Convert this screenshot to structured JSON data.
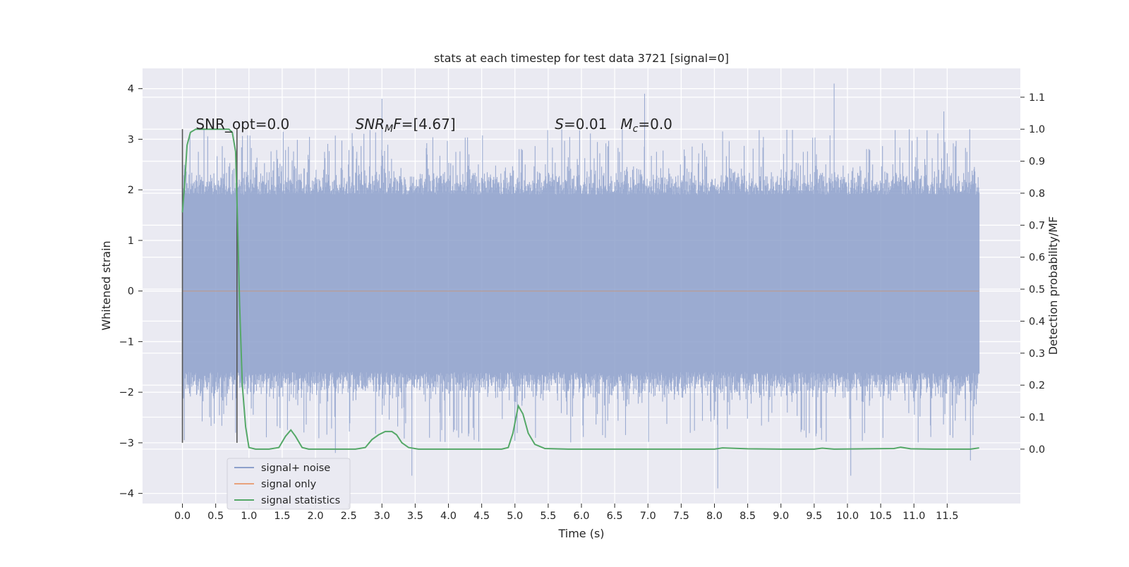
{
  "chart_data": {
    "type": "line",
    "title": "stats at each timestep for test data 3721 [signal=0]",
    "xlabel": "Time (s)",
    "ylabel": "Whitened strain",
    "y2label": "Detection probability/MF",
    "xlim": [
      -0.6,
      12.6
    ],
    "ylim": [
      -4.2,
      4.4
    ],
    "y2lim": [
      -0.17,
      1.19
    ],
    "x_ticks": [
      "0.0",
      "0.5",
      "1.0",
      "1.5",
      "2.0",
      "2.5",
      "3.0",
      "3.5",
      "4.0",
      "4.5",
      "5.0",
      "5.5",
      "6.0",
      "6.5",
      "7.0",
      "7.5",
      "8.0",
      "8.5",
      "9.0",
      "9.5",
      "10.0",
      "10.5",
      "11.0",
      "11.5"
    ],
    "y_ticks": [
      "4",
      "3",
      "2",
      "1",
      "0",
      "−1",
      "−2",
      "−3",
      "−4"
    ],
    "y2_ticks": [
      "1.1",
      "1.0",
      "0.9",
      "0.8",
      "0.7",
      "0.6",
      "0.5",
      "0.4",
      "0.3",
      "0.2",
      "0.1",
      "0.0"
    ],
    "grid": true,
    "legend_position": "lower-left",
    "colors": {
      "signal_noise": "#8da0cb",
      "signal_only": "#e8a27c",
      "statistics": "#55a868",
      "marker": "#555555",
      "background": "#eaeaf2"
    },
    "annotations": [
      {
        "parts": [
          {
            "t": "SNR_opt=0.0",
            "i": false
          }
        ],
        "x": 0.2
      },
      {
        "parts": [
          {
            "t": "SNR",
            "i": true
          },
          {
            "t": "M",
            "i": true,
            "sub": true
          },
          {
            "t": "F",
            "i": true
          },
          {
            "t": "=[4.67]",
            "i": false
          }
        ],
        "x": 2.6
      },
      {
        "parts": [
          {
            "t": "S",
            "i": true
          },
          {
            "t": "=0.01   ",
            "i": false
          },
          {
            "t": "M",
            "i": true
          },
          {
            "t": "c",
            "i": true,
            "sub": true
          },
          {
            "t": "=0.0",
            "i": false
          }
        ],
        "x": 5.6
      }
    ],
    "annotation_y": 3.3,
    "markers": [
      {
        "x": 0.0,
        "y": [
          -3.0,
          3.2
        ]
      },
      {
        "x": 0.82,
        "y": [
          -3.0,
          3.2
        ]
      }
    ],
    "noise_envelope": {
      "x_range": [
        0.0,
        11.98
      ],
      "dense_band": [
        -1.6,
        1.9
      ],
      "typical_peak": 2.6,
      "max": 4.1,
      "min": -3.9,
      "notable_spikes": [
        [
          3.0,
          3.8
        ],
        [
          6.95,
          3.9
        ],
        [
          9.8,
          4.1
        ],
        [
          11.45,
          3.55
        ],
        [
          8.05,
          -3.9
        ],
        [
          10.05,
          -3.65
        ],
        [
          3.45,
          -3.65
        ],
        [
          0.8,
          -2.8
        ],
        [
          2.3,
          -3.2
        ],
        [
          11.85,
          -3.35
        ]
      ]
    },
    "series": [
      {
        "name": "signal+ noise",
        "style": "dense-noise"
      },
      {
        "name": "signal only",
        "values": [
          [
            0.0,
            0.0
          ],
          [
            11.98,
            0.0
          ]
        ]
      },
      {
        "name": "signal statistics",
        "axis": "right",
        "points": [
          [
            0.0,
            0.74
          ],
          [
            0.03,
            0.82
          ],
          [
            0.07,
            0.95
          ],
          [
            0.12,
            0.99
          ],
          [
            0.2,
            1.0
          ],
          [
            0.3,
            1.0
          ],
          [
            0.4,
            1.0
          ],
          [
            0.5,
            1.0
          ],
          [
            0.6,
            1.0
          ],
          [
            0.7,
            1.0
          ],
          [
            0.75,
            0.99
          ],
          [
            0.8,
            0.93
          ],
          [
            0.83,
            0.7
          ],
          [
            0.86,
            0.45
          ],
          [
            0.9,
            0.2
          ],
          [
            0.95,
            0.07
          ],
          [
            1.0,
            0.005
          ],
          [
            1.1,
            0.0
          ],
          [
            1.3,
            0.0
          ],
          [
            1.45,
            0.005
          ],
          [
            1.55,
            0.04
          ],
          [
            1.63,
            0.06
          ],
          [
            1.7,
            0.04
          ],
          [
            1.8,
            0.005
          ],
          [
            1.9,
            0.0
          ],
          [
            2.2,
            0.0
          ],
          [
            2.6,
            0.0
          ],
          [
            2.75,
            0.005
          ],
          [
            2.85,
            0.03
          ],
          [
            2.95,
            0.045
          ],
          [
            3.05,
            0.055
          ],
          [
            3.15,
            0.055
          ],
          [
            3.22,
            0.045
          ],
          [
            3.3,
            0.02
          ],
          [
            3.4,
            0.005
          ],
          [
            3.55,
            0.0
          ],
          [
            4.8,
            0.0
          ],
          [
            4.9,
            0.005
          ],
          [
            4.97,
            0.05
          ],
          [
            5.05,
            0.135
          ],
          [
            5.12,
            0.11
          ],
          [
            5.2,
            0.05
          ],
          [
            5.3,
            0.015
          ],
          [
            5.45,
            0.002
          ],
          [
            5.8,
            0.0
          ],
          [
            8.0,
            0.0
          ],
          [
            8.12,
            0.004
          ],
          [
            8.5,
            0.001
          ],
          [
            9.0,
            0.0
          ],
          [
            9.5,
            0.0
          ],
          [
            9.62,
            0.003
          ],
          [
            9.8,
            0.0
          ],
          [
            10.7,
            0.002
          ],
          [
            10.8,
            0.006
          ],
          [
            10.95,
            0.001
          ],
          [
            11.3,
            0.0
          ],
          [
            11.85,
            0.0
          ],
          [
            11.98,
            0.004
          ]
        ]
      }
    ]
  }
}
